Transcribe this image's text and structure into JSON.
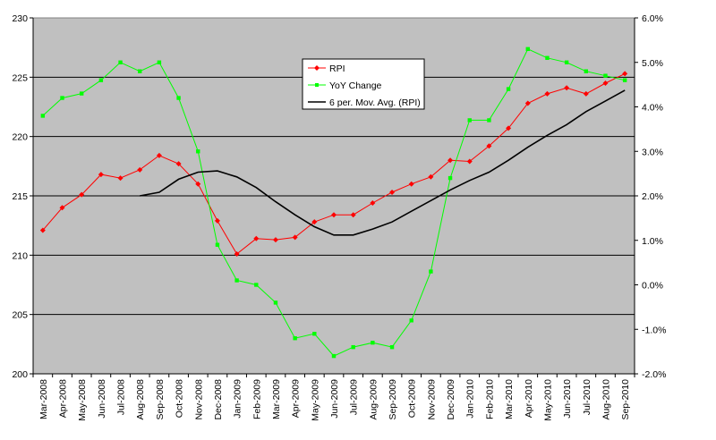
{
  "colors": {
    "plot_background": "#c0c0c0",
    "gridline": "#000000",
    "rpi": "#ff0000",
    "yoy": "#00ff00",
    "moving_avg": "#000000"
  },
  "chart_data": {
    "type": "line",
    "title": "",
    "xlabel": "",
    "ylabel": "",
    "y2label": "",
    "categories": [
      "Mar-2008",
      "Apr-2008",
      "May-2008",
      "Jun-2008",
      "Jul-2008",
      "Aug-2008",
      "Sep-2008",
      "Oct-2008",
      "Nov-2008",
      "Dec-2008",
      "Jan-2009",
      "Feb-2009",
      "Mar-2009",
      "Apr-2009",
      "May-2009",
      "Jun-2009",
      "Jul-2009",
      "Aug-2009",
      "Sep-2009",
      "Oct-2009",
      "Nov-2009",
      "Dec-2009",
      "Jan-2010",
      "Feb-2010",
      "Mar-2010",
      "Apr-2010",
      "May-2010",
      "Jun-2010",
      "Jul-2010",
      "Aug-2010",
      "Sep-2010"
    ],
    "ylim": [
      200,
      230
    ],
    "y_ticks": [
      "200",
      "205",
      "210",
      "215",
      "220",
      "225",
      "230"
    ],
    "y2lim": [
      -2.0,
      6.0
    ],
    "y2_ticks": [
      "-2.0%",
      "-1.0%",
      "0.0%",
      "1.0%",
      "2.0%",
      "3.0%",
      "4.0%",
      "5.0%",
      "6.0%"
    ],
    "grid": "horizontal major gridlines",
    "legend_position": "top-center",
    "series": [
      {
        "name": "RPI",
        "axis": "left",
        "marker": "diamond",
        "color": "#ff0000",
        "values": [
          212.1,
          214.0,
          215.1,
          216.8,
          216.5,
          217.2,
          218.4,
          217.7,
          216.0,
          212.9,
          210.1,
          211.4,
          211.3,
          211.5,
          212.8,
          213.4,
          213.4,
          214.4,
          215.3,
          216.0,
          216.6,
          218.0,
          217.9,
          219.2,
          220.7,
          222.8,
          223.6,
          224.1,
          223.6,
          224.5,
          225.3
        ]
      },
      {
        "name": "YoY Change",
        "axis": "right",
        "marker": "square",
        "color": "#00ff00",
        "values": [
          3.8,
          4.2,
          4.3,
          4.6,
          5.0,
          4.8,
          5.0,
          4.2,
          3.0,
          0.9,
          0.1,
          0.0,
          -0.4,
          -1.2,
          -1.1,
          -1.6,
          -1.4,
          -1.3,
          -1.4,
          -0.8,
          0.3,
          2.4,
          3.7,
          3.7,
          4.4,
          5.3,
          5.1,
          5.0,
          4.8,
          4.7,
          4.6
        ]
      },
      {
        "name": "6 per. Mov. Avg. (RPI)",
        "axis": "left",
        "marker": "none",
        "color": "#000000",
        "values": [
          null,
          null,
          null,
          null,
          null,
          215.0,
          215.3,
          216.4,
          217.0,
          217.1,
          216.6,
          215.7,
          214.5,
          213.4,
          212.4,
          211.7,
          211.7,
          212.2,
          212.8,
          213.7,
          214.6,
          215.5,
          216.3,
          217.0,
          218.0,
          219.1,
          220.1,
          221.0,
          222.1,
          223.0,
          223.9
        ]
      }
    ]
  }
}
